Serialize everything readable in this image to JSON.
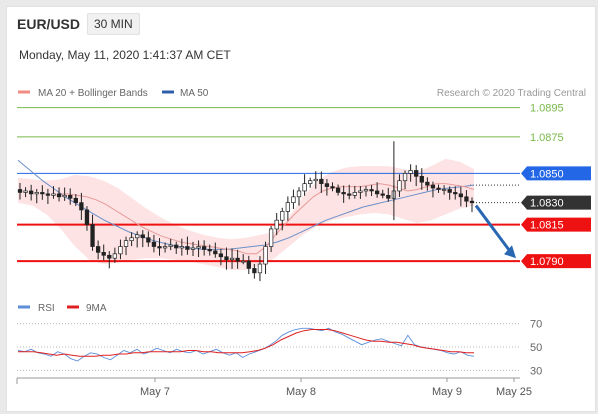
{
  "header": {
    "symbol": "EUR/USD",
    "timeframe": "30 MIN",
    "datetime": "Monday, May 11, 2020 1:41:37 AM CET"
  },
  "legend": {
    "ma20": {
      "label": "MA 20 + Bollinger Bands",
      "color": "#f28b82"
    },
    "ma50": {
      "label": "MA 50",
      "color": "#2f5fa8"
    }
  },
  "credit": "Research © 2020 Trading Central",
  "rsi_legend": {
    "rsi": {
      "label": "RSI",
      "color": "#5b8fd9"
    },
    "ma9": {
      "label": "9MA",
      "color": "#e02020"
    }
  },
  "chart_data": [
    {
      "type": "candlestick",
      "name": "EUR/USD 30 MIN",
      "x_ticks": [
        "May 7",
        "May 8",
        "May 9",
        "May 25"
      ],
      "ylim": [
        1.076,
        1.0905
      ],
      "levels": [
        {
          "label": "1.0895",
          "value": 1.0895,
          "color": "#78b94a",
          "style": "thin"
        },
        {
          "label": "1.0875",
          "value": 1.0875,
          "color": "#78b94a",
          "style": "thin"
        },
        {
          "label": "1.0850",
          "value": 1.085,
          "color": "#2367e6",
          "style": "box"
        },
        {
          "label": "1.0830",
          "value": 1.083,
          "color": "#333333",
          "style": "box"
        },
        {
          "label": "1.0815",
          "value": 1.0815,
          "color": "#ee1111",
          "style": "box"
        },
        {
          "label": "1.0790",
          "value": 1.079,
          "color": "#ee1111",
          "style": "box"
        }
      ],
      "current_price": 1.083,
      "close_series": [
        1.0837,
        1.0838,
        1.0836,
        1.0837,
        1.0836,
        1.0835,
        1.0836,
        1.0834,
        1.0835,
        1.0833,
        1.083,
        1.0825,
        1.0815,
        1.08,
        1.0796,
        1.0794,
        1.0792,
        1.0795,
        1.08,
        1.0804,
        1.0806,
        1.0808,
        1.0806,
        1.0803,
        1.08,
        1.0799,
        1.08,
        1.0801,
        1.0799,
        1.08,
        1.0798,
        1.0799,
        1.08,
        1.0798,
        1.0797,
        1.0795,
        1.0793,
        1.0791,
        1.0792,
        1.079,
        1.079,
        1.0785,
        1.0782,
        1.0788,
        1.08,
        1.0812,
        1.0818,
        1.0824,
        1.083,
        1.0834,
        1.0838,
        1.0843,
        1.0845,
        1.0846,
        1.0843,
        1.0841,
        1.084,
        1.0837,
        1.0836,
        1.0835,
        1.0837,
        1.0838,
        1.0839,
        1.0838,
        1.0836,
        1.0835,
        1.0833,
        1.0838,
        1.0845,
        1.085,
        1.0852,
        1.0848,
        1.0844,
        1.0842,
        1.084,
        1.0839,
        1.0839,
        1.0837,
        1.0836,
        1.0834,
        1.0831,
        1.083
      ],
      "forecast_arrow": {
        "from": 1.0828,
        "to": 1.0792
      },
      "ma20": [
        1.0836,
        1.0836,
        1.0835,
        1.0834,
        1.0832,
        1.0829,
        1.0825,
        1.0821,
        1.0817,
        1.0813,
        1.081,
        1.0807,
        1.0805,
        1.0803,
        1.0802,
        1.0801,
        1.08,
        1.0799,
        1.0798,
        1.0797,
        1.0795,
        1.0795,
        1.08,
        1.0808,
        1.0815,
        1.0822,
        1.0828,
        1.0834,
        1.0838,
        1.084,
        1.0841,
        1.0841,
        1.0841,
        1.0842,
        1.0843,
        1.0842,
        1.084,
        1.0838,
        1.0839,
        1.0841,
        1.0843,
        1.0843,
        1.0842,
        1.0841,
        1.0839
      ],
      "ma50": [
        1.0859,
        1.0852,
        1.0845,
        1.0839,
        1.0833,
        1.0828,
        1.0823,
        1.0818,
        1.0814,
        1.081,
        1.0807,
        1.0804,
        1.0802,
        1.08,
        1.0799,
        1.0798,
        1.0798,
        1.0798,
        1.0799,
        1.08,
        1.0801,
        1.0803,
        1.0806,
        1.081,
        1.0814,
        1.0818,
        1.0821,
        1.0824,
        1.0827,
        1.0829,
        1.0831,
        1.0833,
        1.0835,
        1.0837,
        1.0839,
        1.084,
        1.0841,
        1.0842
      ],
      "bb_upper": [
        1.0847,
        1.0846,
        1.0845,
        1.0846,
        1.0849,
        1.0848,
        1.0845,
        1.084,
        1.0833,
        1.0826,
        1.082,
        1.0815,
        1.0811,
        1.0808,
        1.0806,
        1.0805,
        1.0806,
        1.0808,
        1.081,
        1.082,
        1.0834,
        1.0845,
        1.0851,
        1.0854,
        1.0855,
        1.0855,
        1.0855,
        1.0853,
        1.0851,
        1.0855,
        1.086,
        1.0858,
        1.0853
      ],
      "bb_lower": [
        1.083,
        1.0828,
        1.0822,
        1.0812,
        1.08,
        1.0791,
        1.0788,
        1.0789,
        1.0791,
        1.0792,
        1.0792,
        1.0791,
        1.079,
        1.0788,
        1.0786,
        1.0784,
        1.0784,
        1.0787,
        1.0792,
        1.08,
        1.0808,
        1.0814,
        1.0818,
        1.082,
        1.0822,
        1.0823,
        1.0822,
        1.0819,
        1.0816,
        1.0818,
        1.0822,
        1.0826,
        1.0828
      ]
    },
    {
      "type": "line",
      "name": "RSI",
      "ylim": [
        20,
        80
      ],
      "y_ticks": [
        "70",
        "50",
        "30"
      ],
      "series": [
        {
          "name": "RSI",
          "color": "#5b8fd9",
          "values": [
            47,
            46,
            48,
            45,
            44,
            42,
            46,
            44,
            40,
            38,
            42,
            45,
            44,
            41,
            39,
            43,
            47,
            45,
            48,
            44,
            46,
            49,
            47,
            45,
            48,
            46,
            45,
            47,
            44,
            46,
            48,
            45,
            43,
            45,
            41,
            44,
            46,
            48,
            51,
            55,
            60,
            63,
            65,
            66,
            66,
            65,
            64,
            66,
            63,
            61,
            58,
            55,
            52,
            54,
            56,
            57,
            55,
            53,
            51,
            60,
            52,
            50,
            49,
            48,
            47,
            45,
            44,
            46,
            43,
            42
          ]
        },
        {
          "name": "9MA",
          "color": "#e02020",
          "values": [
            46,
            46,
            46,
            45,
            44,
            43,
            44,
            43,
            42,
            42,
            42,
            43,
            43,
            44,
            44,
            45,
            45,
            46,
            46,
            46,
            46,
            46,
            47,
            47,
            46,
            46,
            45,
            45,
            45,
            45,
            46,
            47,
            49,
            52,
            56,
            59,
            62,
            64,
            65,
            65,
            65,
            64,
            62,
            60,
            58,
            56,
            55,
            55,
            54,
            54,
            53,
            52,
            50,
            49,
            48,
            47,
            46,
            46,
            45,
            45
          ]
        }
      ]
    }
  ]
}
